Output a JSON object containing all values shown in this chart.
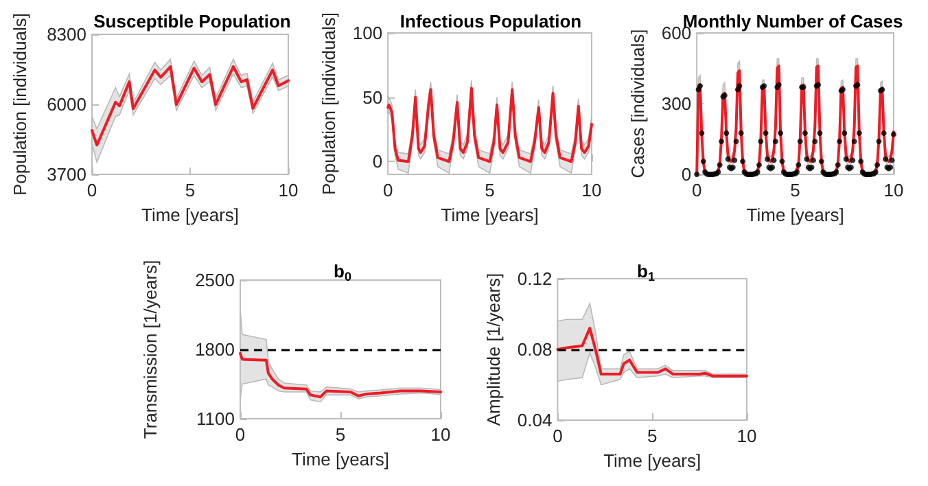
{
  "chart_data": [
    {
      "type": "line",
      "title": "Susceptible Population",
      "xlabel": "Time [years]",
      "ylabel": "Population [individuals]",
      "xlim": [
        0,
        10
      ],
      "xticks": [
        0,
        5,
        10
      ],
      "ylim": [
        3700,
        8300
      ],
      "yticks": [
        3700,
        6000,
        8300
      ],
      "grid": false,
      "marker": "none",
      "series": [
        {
          "color": "#ee1c25",
          "x": [
            0,
            0.25,
            1.2,
            1.4,
            1.9,
            2.1,
            3.2,
            3.5,
            4.0,
            4.3,
            5.2,
            5.6,
            6.0,
            6.3,
            7.2,
            7.6,
            7.9,
            8.2,
            9.2,
            9.5,
            10
          ],
          "values": [
            5140,
            4660,
            6070,
            5950,
            6740,
            5860,
            7130,
            6890,
            7240,
            5990,
            7190,
            6740,
            6980,
            5990,
            7240,
            6740,
            6810,
            5870,
            7130,
            6610,
            6780
          ],
          "lower": [
            4700,
            4100,
            5600,
            5650,
            6450,
            5650,
            6850,
            6650,
            6950,
            5800,
            6950,
            6550,
            6750,
            5800,
            7000,
            6550,
            6600,
            5700,
            6900,
            6450,
            6600
          ],
          "upper": [
            5600,
            5200,
            6550,
            6250,
            7000,
            6050,
            7380,
            7130,
            7480,
            6200,
            7420,
            6950,
            7220,
            6200,
            7480,
            6950,
            7020,
            6080,
            7350,
            6800,
            6960
          ]
        }
      ]
    },
    {
      "type": "line",
      "title": "Infectious Population",
      "xlabel": "Time [years]",
      "ylabel": "Population [individuals]",
      "xlim": [
        0,
        10
      ],
      "xticks": [
        0,
        5,
        10
      ],
      "ylim": [
        -10,
        100
      ],
      "yticks": [
        0,
        50,
        100
      ],
      "grid": false,
      "marker": "none",
      "series": [
        {
          "color": "#ee1c25",
          "x": [
            0,
            0.05,
            0.2,
            0.35,
            0.5,
            1.0,
            1.2,
            1.35,
            1.5,
            1.6,
            1.8,
            2.0,
            2.1,
            2.25,
            2.45,
            3.0,
            3.2,
            3.4,
            3.55,
            3.7,
            3.9,
            4.1,
            4.25,
            4.45,
            5.0,
            5.2,
            5.35,
            5.5,
            5.65,
            5.9,
            6.1,
            6.25,
            6.45,
            7.0,
            7.2,
            7.4,
            7.55,
            7.7,
            7.9,
            8.1,
            8.25,
            8.45,
            9.0,
            9.2,
            9.35,
            9.5,
            9.65,
            9.85,
            10
          ],
          "values": [
            42,
            44,
            38,
            10,
            1,
            0,
            20,
            50,
            10,
            7,
            12,
            45,
            56,
            20,
            3,
            0,
            15,
            46,
            10,
            7,
            15,
            57,
            20,
            3,
            0,
            15,
            44,
            10,
            7,
            15,
            56,
            20,
            3,
            0,
            15,
            42,
            10,
            7,
            15,
            53,
            20,
            3,
            0,
            15,
            43,
            10,
            7,
            12,
            29
          ],
          "lower": [
            37,
            39,
            33,
            5,
            -6,
            -9,
            15,
            45,
            5,
            2,
            7,
            40,
            51,
            15,
            -4,
            -9,
            10,
            41,
            5,
            2,
            10,
            52,
            15,
            -4,
            -9,
            10,
            39,
            5,
            2,
            10,
            51,
            15,
            -4,
            -9,
            10,
            37,
            5,
            2,
            10,
            48,
            15,
            -4,
            -9,
            10,
            38,
            5,
            2,
            7,
            24
          ],
          "upper": [
            48,
            50,
            44,
            16,
            7,
            6,
            26,
            56,
            16,
            13,
            18,
            51,
            62,
            26,
            9,
            6,
            21,
            52,
            16,
            13,
            21,
            63,
            26,
            9,
            6,
            21,
            50,
            16,
            13,
            21,
            62,
            26,
            9,
            6,
            21,
            48,
            16,
            13,
            21,
            59,
            26,
            9,
            6,
            21,
            49,
            16,
            13,
            18,
            35
          ]
        }
      ]
    },
    {
      "type": "line",
      "title": "Monthly Number of Cases",
      "xlabel": "Time [years]",
      "ylabel": "Cases [individuals]",
      "xlim": [
        0,
        10
      ],
      "xticks": [
        0,
        5,
        10
      ],
      "ylim": [
        0,
        600
      ],
      "yticks": [
        0,
        300,
        600
      ],
      "grid": false,
      "marker": "none",
      "x": [
        0,
        0.083,
        0.167,
        0.25,
        0.333,
        0.417,
        0.5,
        0.583,
        0.667,
        0.75,
        0.833,
        0.917,
        1,
        1.083,
        1.167,
        1.25,
        1.333,
        1.417,
        1.5,
        1.583,
        1.667,
        1.75,
        1.833,
        1.917,
        2,
        2.083,
        2.167,
        2.25,
        2.333,
        2.417,
        2.5,
        2.583,
        2.667,
        2.75,
        2.833,
        2.917,
        3,
        3.083,
        3.167,
        3.25,
        3.333,
        3.417,
        3.5,
        3.583,
        3.667,
        3.75,
        3.833,
        3.917,
        4,
        4.083,
        4.167,
        4.25,
        4.333,
        4.417,
        4.5,
        4.583,
        4.667,
        4.75,
        4.833,
        4.917,
        5,
        5.083,
        5.167,
        5.25,
        5.333,
        5.417,
        5.5,
        5.583,
        5.667,
        5.75,
        5.833,
        5.917,
        6,
        6.083,
        6.167,
        6.25,
        6.333,
        6.417,
        6.5,
        6.583,
        6.667,
        6.75,
        6.833,
        6.917,
        7,
        7.083,
        7.167,
        7.25,
        7.333,
        7.417,
        7.5,
        7.583,
        7.667,
        7.75,
        7.833,
        7.917,
        8,
        8.083,
        8.167,
        8.25,
        8.333,
        8.417,
        8.5,
        8.583,
        8.667,
        8.75,
        8.833,
        8.917,
        9,
        9.083,
        9.167,
        9.25,
        9.333,
        9.417,
        9.5,
        9.583,
        9.667,
        9.75,
        9.833,
        9.917,
        10
      ],
      "series": [
        {
          "color": "#ee1c25",
          "values": [
            0,
            370,
            380,
            170,
            50,
            10,
            2,
            0,
            0,
            0,
            0,
            2,
            5,
            12,
            45,
            150,
            340,
            345,
            180,
            80,
            60,
            55,
            65,
            100,
            200,
            430,
            440,
            180,
            55,
            10,
            2,
            0,
            0,
            0,
            0,
            2,
            5,
            12,
            45,
            150,
            370,
            370,
            180,
            80,
            60,
            55,
            65,
            100,
            200,
            450,
            460,
            180,
            55,
            10,
            2,
            0,
            0,
            0,
            0,
            2,
            5,
            12,
            45,
            150,
            375,
            380,
            180,
            80,
            60,
            55,
            65,
            100,
            200,
            455,
            460,
            180,
            55,
            10,
            2,
            0,
            0,
            0,
            0,
            2,
            5,
            12,
            45,
            150,
            365,
            370,
            180,
            80,
            60,
            55,
            65,
            100,
            200,
            455,
            460,
            180,
            55,
            10,
            2,
            0,
            0,
            0,
            0,
            2,
            5,
            12,
            45,
            150,
            360,
            365,
            180,
            80,
            60,
            55,
            65,
            100,
            180
          ],
          "lower": [
            0,
            330,
            340,
            140,
            30,
            0,
            0,
            0,
            0,
            0,
            0,
            0,
            0,
            0,
            25,
            120,
            300,
            305,
            150,
            60,
            40,
            35,
            45,
            80,
            170,
            390,
            400,
            150,
            35,
            0,
            0,
            0,
            0,
            0,
            0,
            0,
            0,
            0,
            25,
            120,
            340,
            340,
            150,
            60,
            40,
            35,
            45,
            80,
            170,
            410,
            420,
            150,
            35,
            0,
            0,
            0,
            0,
            0,
            0,
            0,
            0,
            0,
            25,
            120,
            345,
            350,
            150,
            60,
            40,
            35,
            45,
            80,
            170,
            415,
            420,
            150,
            35,
            0,
            0,
            0,
            0,
            0,
            0,
            0,
            0,
            0,
            25,
            120,
            335,
            340,
            150,
            60,
            40,
            35,
            45,
            80,
            170,
            415,
            420,
            150,
            35,
            0,
            0,
            0,
            0,
            0,
            0,
            0,
            0,
            0,
            25,
            120,
            330,
            335,
            150,
            60,
            40,
            35,
            45,
            80,
            150
          ],
          "upper": [
            10,
            410,
            420,
            200,
            70,
            20,
            8,
            5,
            5,
            5,
            5,
            8,
            12,
            25,
            65,
            180,
            380,
            390,
            210,
            100,
            80,
            75,
            85,
            125,
            230,
            470,
            480,
            210,
            70,
            20,
            8,
            5,
            5,
            5,
            5,
            8,
            12,
            25,
            65,
            180,
            400,
            400,
            210,
            100,
            80,
            75,
            85,
            125,
            230,
            490,
            490,
            210,
            70,
            20,
            8,
            5,
            5,
            5,
            5,
            8,
            12,
            25,
            65,
            180,
            410,
            410,
            210,
            100,
            80,
            75,
            85,
            125,
            230,
            490,
            490,
            210,
            70,
            20,
            8,
            5,
            5,
            5,
            5,
            8,
            12,
            25,
            65,
            180,
            395,
            400,
            210,
            100,
            80,
            75,
            85,
            125,
            230,
            490,
            490,
            210,
            70,
            20,
            8,
            5,
            5,
            5,
            5,
            8,
            12,
            25,
            65,
            180,
            390,
            395,
            210,
            100,
            80,
            75,
            85,
            125,
            210
          ]
        },
        {
          "type": "scatter",
          "color": "#000000",
          "marker": "circle",
          "values": [
            0,
            360,
            375,
            175,
            55,
            10,
            2,
            0,
            0,
            0,
            0,
            2,
            3,
            10,
            40,
            140,
            330,
            335,
            175,
            65,
            30,
            25,
            30,
            60,
            140,
            360,
            375,
            175,
            55,
            10,
            2,
            0,
            0,
            0,
            0,
            2,
            3,
            10,
            40,
            140,
            370,
            375,
            175,
            65,
            30,
            25,
            30,
            60,
            140,
            370,
            380,
            175,
            55,
            10,
            2,
            0,
            0,
            0,
            0,
            2,
            3,
            10,
            40,
            140,
            370,
            370,
            175,
            65,
            30,
            25,
            30,
            60,
            140,
            375,
            380,
            175,
            55,
            10,
            2,
            0,
            0,
            0,
            0,
            2,
            3,
            10,
            40,
            140,
            355,
            360,
            175,
            65,
            30,
            25,
            30,
            60,
            140,
            375,
            380,
            175,
            55,
            10,
            2,
            0,
            0,
            0,
            0,
            2,
            3,
            10,
            40,
            140,
            355,
            360,
            175,
            65,
            30,
            25,
            30,
            60,
            170
          ]
        }
      ]
    },
    {
      "type": "line",
      "title": "b$_{0}$",
      "xlabel": "Time [years]",
      "ylabel": "Transmission [1/years]",
      "xlim": [
        0,
        10
      ],
      "xticks": [
        0,
        5,
        10
      ],
      "ylim": [
        1100,
        2500
      ],
      "yticks": [
        1100,
        1800,
        2500
      ],
      "grid": false,
      "marker": "none",
      "ref_lines": [
        {
          "axis": "y",
          "value": 1800,
          "color": "#000000",
          "line_style": "dashed"
        }
      ],
      "series": [
        {
          "color": "#ee1c25",
          "x": [
            0,
            0.1,
            1.3,
            1.4,
            1.6,
            1.9,
            2.2,
            3.3,
            3.5,
            4.0,
            4.3,
            5.5,
            5.9,
            6.3,
            7.0,
            8.0,
            9.0,
            10
          ],
          "values": [
            1760,
            1700,
            1690,
            1560,
            1500,
            1440,
            1410,
            1400,
            1340,
            1320,
            1380,
            1370,
            1330,
            1350,
            1360,
            1380,
            1380,
            1370
          ],
          "lower": [
            1300,
            1450,
            1500,
            1440,
            1420,
            1380,
            1370,
            1370,
            1290,
            1270,
            1340,
            1340,
            1300,
            1320,
            1330,
            1350,
            1360,
            1345
          ],
          "upper": [
            2200,
            1950,
            1900,
            1680,
            1600,
            1500,
            1460,
            1440,
            1380,
            1370,
            1420,
            1400,
            1370,
            1380,
            1390,
            1410,
            1410,
            1395
          ]
        }
      ]
    },
    {
      "type": "line",
      "title": "b$_{1}$",
      "xlabel": "Time [years]",
      "ylabel": "Amplitude [1/years]",
      "xlim": [
        0,
        10
      ],
      "xticks": [
        0,
        5,
        10
      ],
      "ylim": [
        0.04,
        0.12
      ],
      "yticks": [
        0.04,
        0.08,
        0.12
      ],
      "grid": false,
      "marker": "none",
      "ref_lines": [
        {
          "axis": "y",
          "value": 0.08,
          "color": "#000000",
          "line_style": "dashed"
        }
      ],
      "series": [
        {
          "color": "#ee1c25",
          "x": [
            0,
            0.5,
            1.3,
            1.7,
            2.0,
            2.3,
            3.3,
            3.5,
            3.8,
            4.2,
            5.3,
            5.7,
            6.1,
            7.5,
            7.8,
            8.2,
            10
          ],
          "values": [
            0.08,
            0.081,
            0.082,
            0.092,
            0.08,
            0.066,
            0.066,
            0.072,
            0.074,
            0.067,
            0.067,
            0.069,
            0.066,
            0.066,
            0.0665,
            0.065,
            0.065
          ],
          "lower": [
            0.062,
            0.063,
            0.064,
            0.078,
            0.07,
            0.06,
            0.063,
            0.067,
            0.069,
            0.064,
            0.065,
            0.066,
            0.064,
            0.065,
            0.065,
            0.064,
            0.064
          ],
          "upper": [
            0.096,
            0.097,
            0.097,
            0.106,
            0.09,
            0.069,
            0.069,
            0.077,
            0.079,
            0.069,
            0.069,
            0.071,
            0.068,
            0.068,
            0.068,
            0.066,
            0.066
          ]
        }
      ]
    }
  ]
}
